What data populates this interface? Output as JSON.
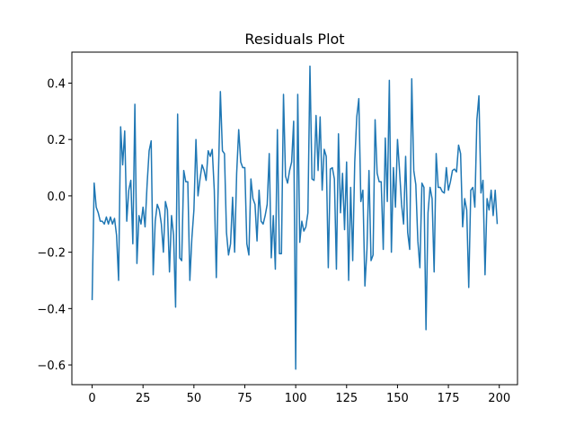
{
  "chart_data": {
    "type": "line",
    "title": "Residuals Plot",
    "color": "#1f77b4",
    "x": [
      0,
      1,
      2,
      3,
      4,
      5,
      6,
      7,
      8,
      9,
      10,
      11,
      12,
      13,
      14,
      15,
      16,
      17,
      18,
      19,
      20,
      21,
      22,
      23,
      24,
      25,
      26,
      27,
      28,
      29,
      30,
      31,
      32,
      33,
      34,
      35,
      36,
      37,
      38,
      39,
      40,
      41,
      42,
      43,
      44,
      45,
      46,
      47,
      48,
      49,
      50,
      51,
      52,
      53,
      54,
      55,
      56,
      57,
      58,
      59,
      60,
      61,
      62,
      63,
      64,
      65,
      66,
      67,
      68,
      69,
      70,
      71,
      72,
      73,
      74,
      75,
      76,
      77,
      78,
      79,
      80,
      81,
      82,
      83,
      84,
      85,
      86,
      87,
      88,
      89,
      90,
      91,
      92,
      93,
      94,
      95,
      96,
      97,
      98,
      99,
      100,
      101,
      102,
      103,
      104,
      105,
      106,
      107,
      108,
      109,
      110,
      111,
      112,
      113,
      114,
      115,
      116,
      117,
      118,
      119,
      120,
      121,
      122,
      123,
      124,
      125,
      126,
      127,
      128,
      129,
      130,
      131,
      132,
      133,
      134,
      135,
      136,
      137,
      138,
      139,
      140,
      141,
      142,
      143,
      144,
      145,
      146,
      147,
      148,
      149,
      150,
      151,
      152,
      153,
      154,
      155,
      156,
      157,
      158,
      159,
      160,
      161,
      162,
      163,
      164,
      165,
      166,
      167,
      168,
      169,
      170,
      171,
      172,
      173,
      174,
      175,
      176,
      177,
      178,
      179,
      180,
      181,
      182,
      183,
      184,
      185,
      186,
      187,
      188,
      189,
      190,
      191,
      192,
      193,
      194,
      195,
      196,
      197,
      198,
      199
    ],
    "values": [
      -0.37,
      0.045,
      -0.04,
      -0.06,
      -0.09,
      -0.09,
      -0.1,
      -0.075,
      -0.1,
      -0.075,
      -0.1,
      -0.08,
      -0.14,
      -0.3,
      0.245,
      0.11,
      0.23,
      -0.09,
      0.02,
      0.055,
      -0.17,
      0.325,
      -0.24,
      -0.07,
      -0.1,
      -0.04,
      -0.11,
      0.04,
      0.16,
      0.195,
      -0.28,
      -0.09,
      -0.03,
      -0.05,
      -0.1,
      -0.2,
      -0.02,
      -0.05,
      -0.27,
      -0.07,
      -0.14,
      -0.395,
      0.29,
      -0.22,
      -0.23,
      0.09,
      0.05,
      0.05,
      -0.3,
      -0.15,
      -0.05,
      0.2,
      0.0,
      0.06,
      0.11,
      0.09,
      0.055,
      0.16,
      0.14,
      0.165,
      0.02,
      -0.29,
      0.06,
      0.37,
      0.16,
      0.15,
      -0.13,
      -0.21,
      -0.17,
      -0.005,
      -0.2,
      0.08,
      0.235,
      0.12,
      0.1,
      0.1,
      -0.17,
      -0.21,
      0.06,
      -0.01,
      -0.03,
      -0.16,
      0.02,
      -0.09,
      -0.1,
      -0.07,
      -0.03,
      0.15,
      -0.22,
      -0.07,
      -0.26,
      0.235,
      -0.205,
      -0.205,
      0.36,
      0.07,
      0.045,
      0.09,
      0.12,
      0.265,
      -0.615,
      0.36,
      -0.165,
      -0.09,
      -0.125,
      -0.11,
      -0.06,
      0.46,
      0.06,
      0.055,
      0.285,
      0.09,
      0.28,
      0.02,
      0.165,
      0.14,
      -0.255,
      0.095,
      0.1,
      0.06,
      -0.26,
      0.22,
      -0.06,
      0.08,
      -0.12,
      0.12,
      -0.3,
      0.03,
      -0.23,
      0.12,
      0.28,
      0.345,
      -0.02,
      0.02,
      -0.32,
      -0.19,
      0.09,
      -0.23,
      -0.21,
      0.27,
      0.08,
      0.05,
      0.05,
      -0.19,
      0.205,
      -0.02,
      0.41,
      -0.2,
      0.1,
      -0.04,
      0.2,
      0.09,
      -0.03,
      -0.1,
      0.14,
      -0.13,
      -0.19,
      0.415,
      0.09,
      0.04,
      -0.16,
      -0.255,
      0.045,
      0.03,
      -0.475,
      -0.06,
      0.03,
      -0.01,
      -0.27,
      0.15,
      0.03,
      0.03,
      0.015,
      0.01,
      0.1,
      0.02,
      0.05,
      0.09,
      0.095,
      0.085,
      0.18,
      0.15,
      -0.11,
      -0.01,
      -0.05,
      -0.325,
      0.02,
      0.03,
      -0.04,
      0.27,
      0.355,
      0.01,
      0.055,
      -0.28,
      -0.01,
      -0.05,
      0.02,
      -0.07,
      0.02,
      -0.1
    ],
    "xlim": [
      -9.95,
      208.95
    ],
    "ylim": [
      -0.67,
      0.51
    ],
    "xticks": [
      0,
      25,
      50,
      75,
      100,
      125,
      150,
      175,
      200
    ],
    "yticks": [
      {
        "value": -0.6,
        "label": "−0.6"
      },
      {
        "value": -0.4,
        "label": "−0.4"
      },
      {
        "value": -0.2,
        "label": "−0.2"
      },
      {
        "value": 0,
        "label": "0.0"
      },
      0.2,
      0.4
    ]
  }
}
